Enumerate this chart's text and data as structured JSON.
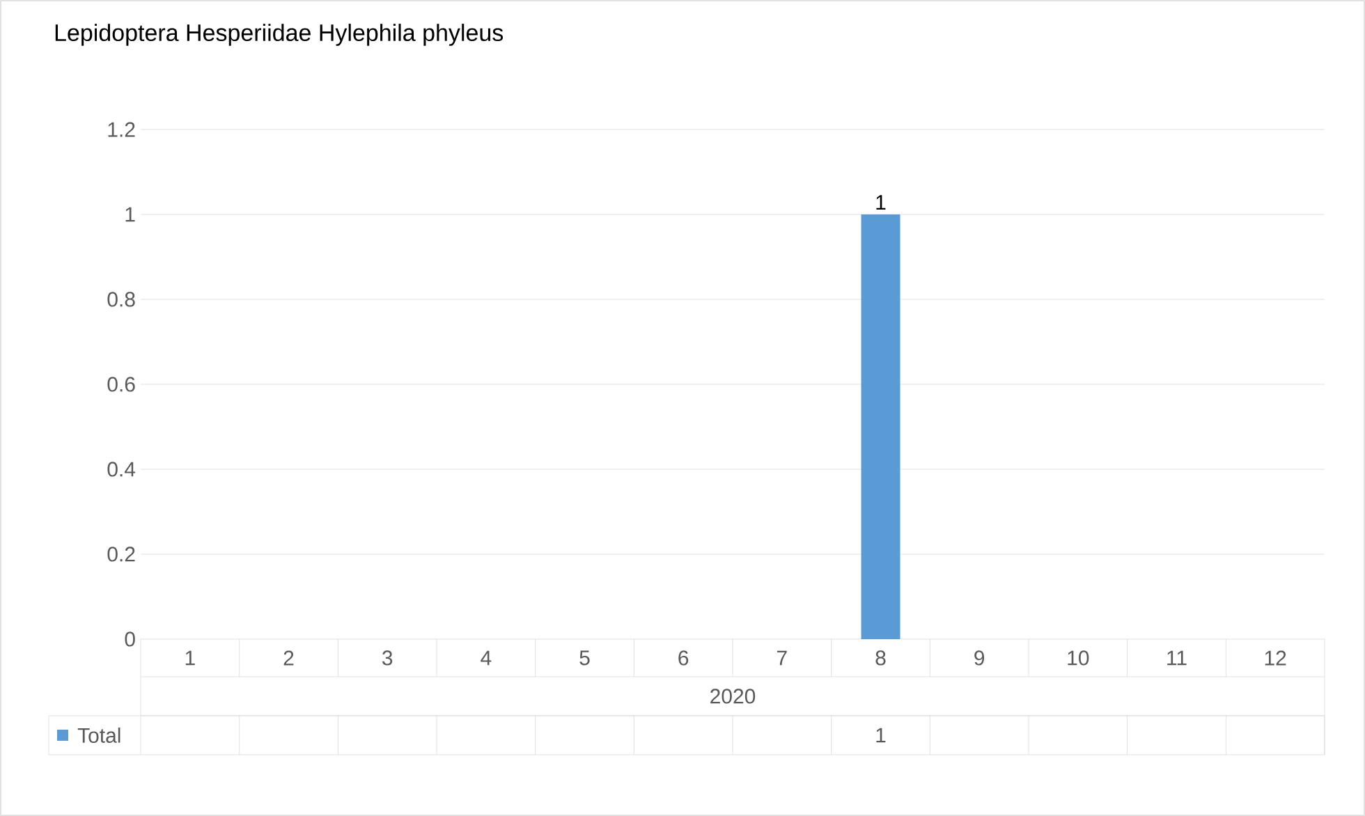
{
  "chart_data": {
    "type": "bar",
    "title": "Lepidoptera Hesperiidae Hylephila phyleus",
    "xlabel": "2020",
    "categories": [
      "1",
      "2",
      "3",
      "4",
      "5",
      "6",
      "7",
      "8",
      "9",
      "10",
      "11",
      "12"
    ],
    "series": [
      {
        "name": "Total",
        "color": "#5b9bd5",
        "values": [
          null,
          null,
          null,
          null,
          null,
          null,
          null,
          1,
          null,
          null,
          null,
          null
        ],
        "value_labels": [
          null,
          null,
          null,
          null,
          null,
          null,
          null,
          "1",
          null,
          null,
          null,
          null
        ]
      }
    ],
    "ylim": [
      0,
      1.2
    ],
    "yticks": [
      0,
      0.2,
      0.4,
      0.6,
      0.8,
      1,
      1.2
    ],
    "grid": "y",
    "legend": "bottom left"
  }
}
